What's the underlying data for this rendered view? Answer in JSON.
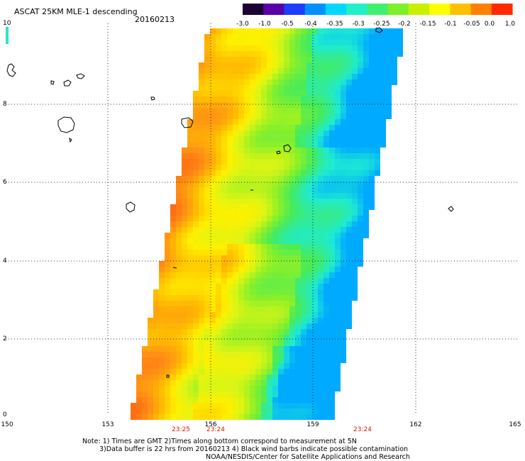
{
  "title": {
    "product": "ASCAT 25KM MLE-1 descending",
    "date": "20160213"
  },
  "colorbar": {
    "labels": [
      "-3.0",
      "-1.0",
      "-0.5",
      "-0.4",
      "-0.35",
      "-0.3",
      "-0.25",
      "-0.2",
      "-0.15",
      "-0.1",
      "-0.05",
      "0.0",
      "1.0"
    ],
    "colors": [
      "#1a0033",
      "#5a00a8",
      "#1e3cff",
      "#0090ff",
      "#00d8ff",
      "#22f0c8",
      "#40f070",
      "#7cf02a",
      "#c8f000",
      "#ffff00",
      "#ffc000",
      "#ff8000",
      "#ff2a00"
    ]
  },
  "axes": {
    "lat_labels": [
      "0",
      "2",
      "4",
      "6",
      "8",
      "10"
    ],
    "lon_labels": [
      "150",
      "153",
      "156",
      "159",
      "162",
      "165"
    ],
    "lat_range": [
      0,
      10
    ],
    "lon_range": [
      150,
      165
    ],
    "grid": "dotted"
  },
  "time_labels": [
    {
      "text": "23:25",
      "lon": 155.0
    },
    {
      "text": "23:24",
      "lon": 156.2
    },
    {
      "text": "23:24",
      "lon": 160.4
    }
  ],
  "notes": {
    "line1": "Note: 1) Times are GMT 2)Times along bottom correspond to measurement at 5N",
    "line2": "3)Data buffer is 22 hrs from 20160213 4) Black wind barbs indicate possible contamination",
    "line3": "NOAA/NESDIS/Center for Satellite Applications and Research"
  }
}
